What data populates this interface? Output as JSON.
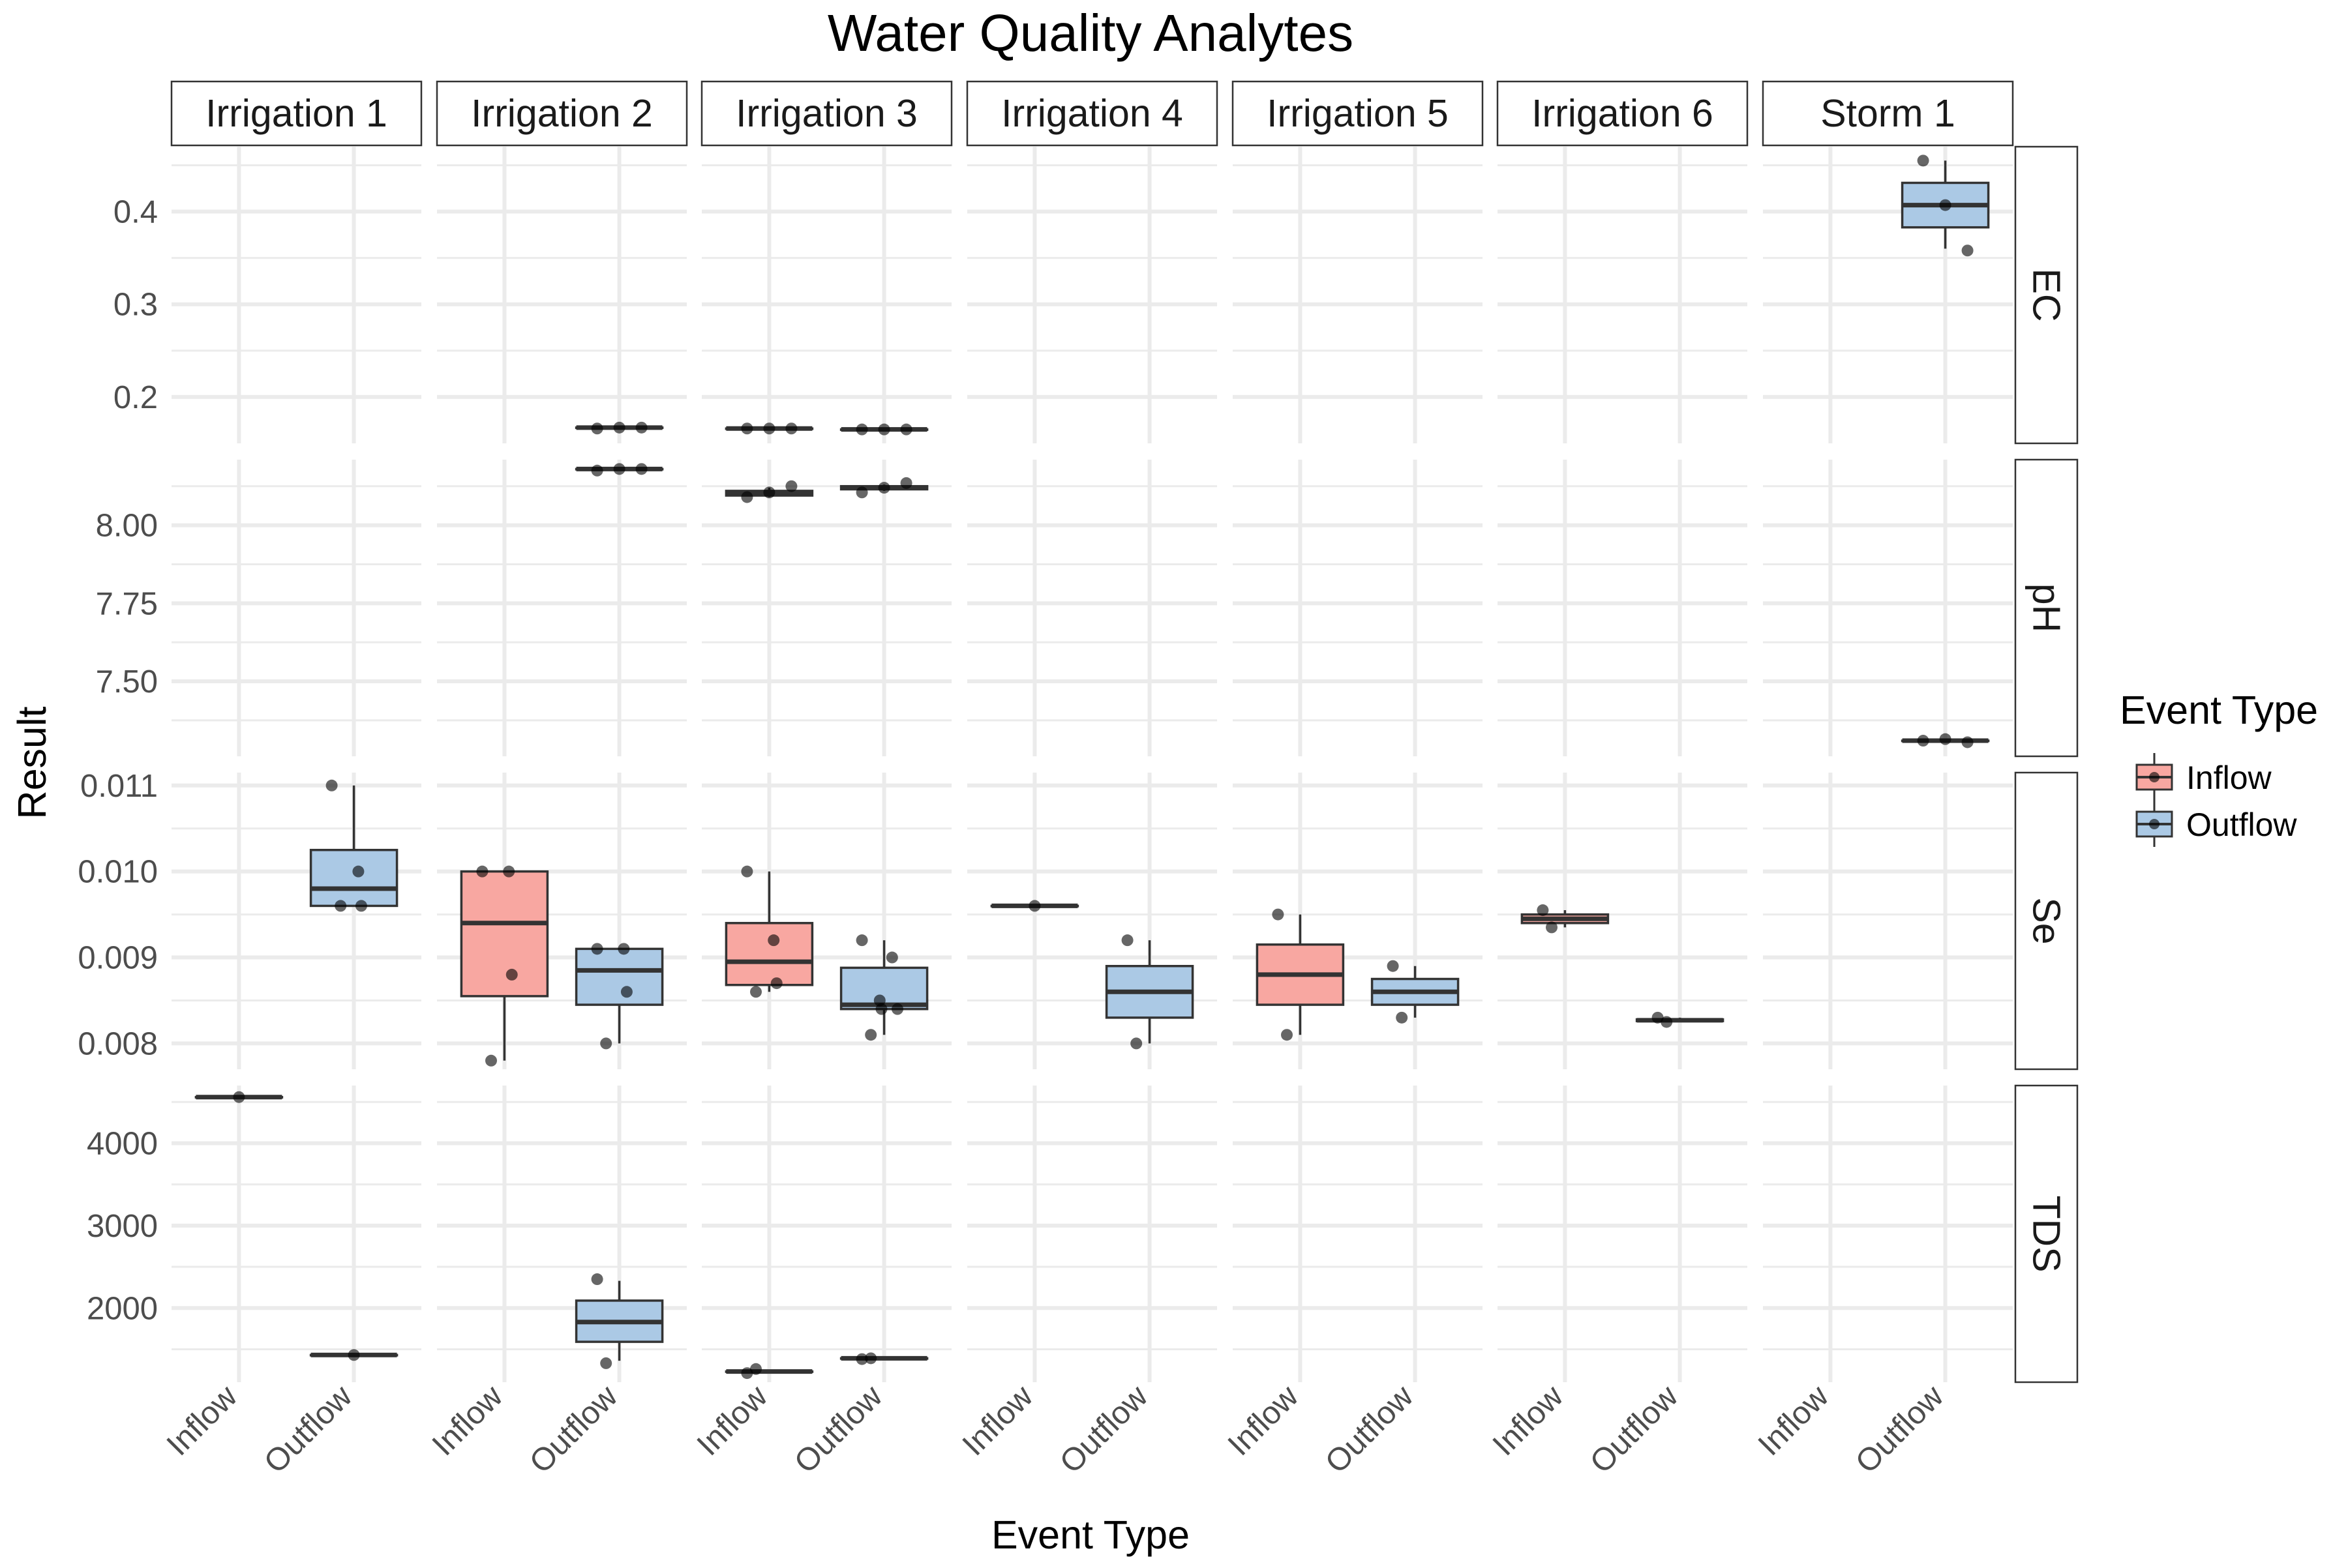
{
  "chart_data": {
    "type": "boxplot",
    "title": "Water Quality Analytes",
    "xlabel": "Event Type",
    "ylabel": "Result",
    "categories": [
      "Inflow",
      "Outflow"
    ],
    "grid": true,
    "legend_position": "right",
    "legend": {
      "title": "Event Type",
      "items": [
        {
          "label": "Inflow",
          "fill": "#F8A7A1"
        },
        {
          "label": "Outflow",
          "fill": "#ABC9E5"
        }
      ]
    },
    "columns": [
      "Irrigation 1",
      "Irrigation 2",
      "Irrigation 3",
      "Irrigation 4",
      "Irrigation 5",
      "Irrigation 6",
      "Storm 1"
    ],
    "rows": [
      {
        "name": "EC",
        "ylim": [
          0.15,
          0.47
        ],
        "ticks": [
          0.2,
          0.3,
          0.4
        ],
        "tick_labels": [
          "0.2",
          "0.3",
          "0.4"
        ],
        "minor_ticks": [
          0.25,
          0.35,
          0.45
        ],
        "boxes": [
          {
            "event": "Irrigation 2",
            "category": "Outflow",
            "min": 0.167,
            "q1": 0.167,
            "median": 0.167,
            "q3": 0.167,
            "max": 0.167,
            "points": [
              0.166,
              0.167,
              0.167
            ]
          },
          {
            "event": "Irrigation 3",
            "category": "Inflow",
            "min": 0.166,
            "q1": 0.166,
            "median": 0.166,
            "q3": 0.166,
            "max": 0.166,
            "points": [
              0.166,
              0.166,
              0.166
            ]
          },
          {
            "event": "Irrigation 3",
            "category": "Outflow",
            "min": 0.165,
            "q1": 0.165,
            "median": 0.165,
            "q3": 0.165,
            "max": 0.165,
            "points": [
              0.165,
              0.165,
              0.165
            ]
          },
          {
            "event": "Storm 1",
            "category": "Outflow",
            "min": 0.36,
            "q1": 0.383,
            "median": 0.407,
            "q3": 0.431,
            "max": 0.455,
            "points": [
              0.455,
              0.407,
              0.358
            ]
          }
        ]
      },
      {
        "name": "pH",
        "ylim": [
          7.26,
          8.21
        ],
        "ticks": [
          7.5,
          7.75,
          8.0
        ],
        "tick_labels": [
          "7.50",
          "7.75",
          "8.00"
        ],
        "minor_ticks": [
          7.375,
          7.625,
          7.875,
          8.125
        ],
        "boxes": [
          {
            "event": "Irrigation 2",
            "category": "Outflow",
            "min": 8.18,
            "q1": 8.18,
            "median": 8.18,
            "q3": 8.18,
            "max": 8.18,
            "points": [
              8.175,
              8.18,
              8.18
            ]
          },
          {
            "event": "Irrigation 3",
            "category": "Inflow",
            "min": 8.09,
            "q1": 8.095,
            "median": 8.105,
            "q3": 8.11,
            "max": 8.12,
            "points": [
              8.09,
              8.105,
              8.125
            ]
          },
          {
            "event": "Irrigation 3",
            "category": "Outflow",
            "min": 8.11,
            "q1": 8.115,
            "median": 8.12,
            "q3": 8.125,
            "max": 8.13,
            "points": [
              8.105,
              8.12,
              8.135
            ]
          },
          {
            "event": "Storm 1",
            "category": "Outflow",
            "min": 7.31,
            "q1": 7.31,
            "median": 7.31,
            "q3": 7.31,
            "max": 7.31,
            "points": [
              7.31,
              7.315,
              7.305
            ]
          }
        ]
      },
      {
        "name": "Se",
        "ylim": [
          0.0077,
          0.01115
        ],
        "ticks": [
          0.008,
          0.009,
          0.01,
          0.011
        ],
        "tick_labels": [
          "0.008",
          "0.009",
          "0.010",
          "0.011"
        ],
        "minor_ticks": [
          0.0085,
          0.0095,
          0.0105
        ],
        "boxes": [
          {
            "event": "Irrigation 1",
            "category": "Outflow",
            "min": 0.0096,
            "q1": 0.0096,
            "median": 0.0098,
            "q3": 0.01025,
            "max": 0.011,
            "points": [
              0.011,
              0.01,
              0.0096,
              0.0096
            ]
          },
          {
            "event": "Irrigation 2",
            "category": "Inflow",
            "min": 0.0078,
            "q1": 0.00855,
            "median": 0.0094,
            "q3": 0.01,
            "max": 0.01,
            "points": [
              0.01,
              0.01,
              0.0088,
              0.0078
            ]
          },
          {
            "event": "Irrigation 2",
            "category": "Outflow",
            "min": 0.008,
            "q1": 0.00845,
            "median": 0.00885,
            "q3": 0.0091,
            "max": 0.0091,
            "points": [
              0.0091,
              0.0091,
              0.0086,
              0.008
            ]
          },
          {
            "event": "Irrigation 3",
            "category": "Inflow",
            "min": 0.0086,
            "q1": 0.00868,
            "median": 0.00895,
            "q3": 0.0094,
            "max": 0.01,
            "points": [
              0.01,
              0.0092,
              0.0087,
              0.0086
            ]
          },
          {
            "event": "Irrigation 3",
            "category": "Outflow",
            "min": 0.0081,
            "q1": 0.0084,
            "median": 0.00845,
            "q3": 0.00888,
            "max": 0.0092,
            "points": [
              0.0092,
              0.009,
              0.0085,
              0.0084,
              0.0084,
              0.0081
            ]
          },
          {
            "event": "Irrigation 4",
            "category": "Inflow",
            "min": 0.0096,
            "q1": 0.0096,
            "median": 0.0096,
            "q3": 0.0096,
            "max": 0.0096,
            "points": [
              0.0096
            ]
          },
          {
            "event": "Irrigation 4",
            "category": "Outflow",
            "min": 0.008,
            "q1": 0.0083,
            "median": 0.0086,
            "q3": 0.0089,
            "max": 0.0092,
            "points": [
              0.0092,
              0.008
            ]
          },
          {
            "event": "Irrigation 5",
            "category": "Inflow",
            "min": 0.0081,
            "q1": 0.00845,
            "median": 0.0088,
            "q3": 0.00915,
            "max": 0.0095,
            "points": [
              0.0095,
              0.0081
            ]
          },
          {
            "event": "Irrigation 5",
            "category": "Outflow",
            "min": 0.0083,
            "q1": 0.00845,
            "median": 0.0086,
            "q3": 0.00875,
            "max": 0.0089,
            "points": [
              0.0089,
              0.0083
            ]
          },
          {
            "event": "Irrigation 6",
            "category": "Inflow",
            "min": 0.00935,
            "q1": 0.0094,
            "median": 0.00945,
            "q3": 0.0095,
            "max": 0.00955,
            "points": [
              0.00955,
              0.00935
            ]
          },
          {
            "event": "Irrigation 6",
            "category": "Outflow",
            "min": 0.00825,
            "q1": 0.00826,
            "median": 0.00827,
            "q3": 0.00828,
            "max": 0.0083,
            "points": [
              0.0083,
              0.00825
            ]
          }
        ]
      },
      {
        "name": "TDS",
        "ylim": [
          1100,
          4700
        ],
        "ticks": [
          2000,
          3000,
          4000
        ],
        "tick_labels": [
          "2000",
          "3000",
          "4000"
        ],
        "minor_ticks": [
          1500,
          2500,
          3500,
          4500
        ],
        "boxes": [
          {
            "event": "Irrigation 1",
            "category": "Inflow",
            "min": 4560,
            "q1": 4560,
            "median": 4560,
            "q3": 4560,
            "max": 4560,
            "points": [
              4560
            ]
          },
          {
            "event": "Irrigation 1",
            "category": "Outflow",
            "min": 1430,
            "q1": 1430,
            "median": 1430,
            "q3": 1430,
            "max": 1430,
            "points": [
              1430
            ]
          },
          {
            "event": "Irrigation 2",
            "category": "Outflow",
            "min": 1360,
            "q1": 1590,
            "median": 1830,
            "q3": 2090,
            "max": 2330,
            "points": [
              2350,
              1330
            ]
          },
          {
            "event": "Irrigation 3",
            "category": "Inflow",
            "min": 1230,
            "q1": 1230,
            "median": 1230,
            "q3": 1230,
            "max": 1230,
            "points": [
              1210,
              1260
            ]
          },
          {
            "event": "Irrigation 3",
            "category": "Outflow",
            "min": 1390,
            "q1": 1390,
            "median": 1390,
            "q3": 1390,
            "max": 1390,
            "points": [
              1380,
              1390
            ]
          }
        ]
      }
    ]
  }
}
